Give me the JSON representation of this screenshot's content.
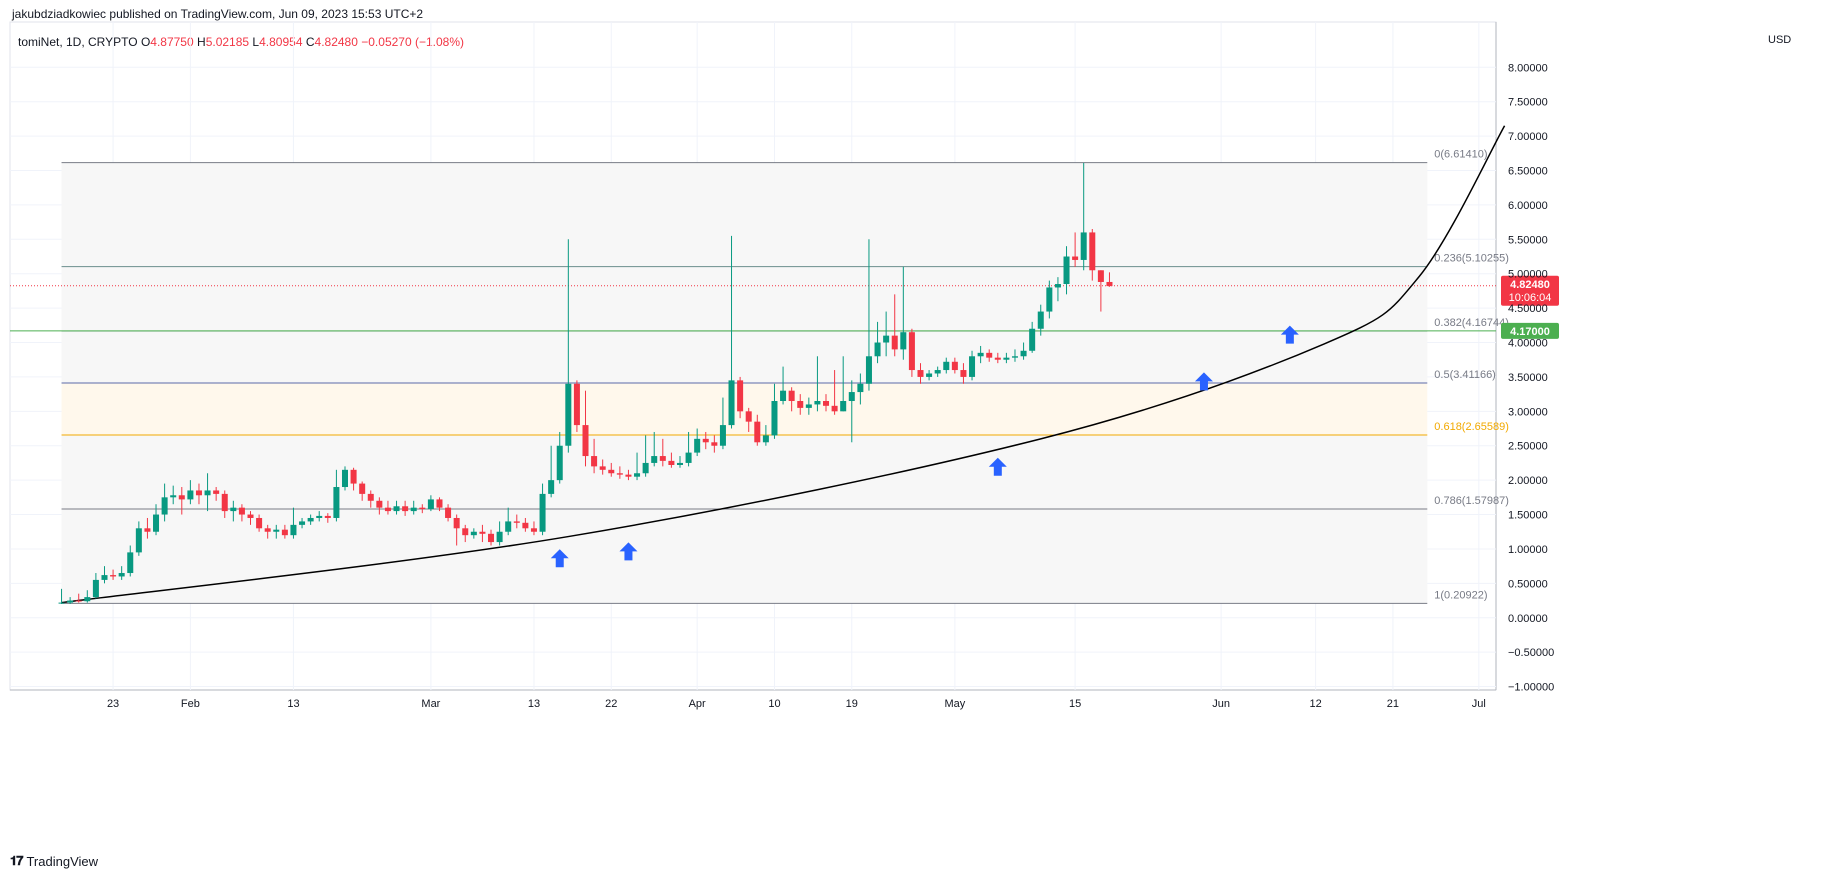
{
  "publisher_line": "jakubdziadkowiec published on TradingView.com, Jun 09, 2023 15:53 UTC+2",
  "legend": {
    "symbol": "tomiNet, 1D, CRYPTO",
    "o_label": "O",
    "o_value": "4.87750",
    "h_label": "H",
    "h_value": "5.02185",
    "l_label": "L",
    "l_value": "4.80954",
    "c_label": "C",
    "c_value": "4.82480",
    "change": "−0.05270 (−1.08%)"
  },
  "currency": "USD",
  "footer": {
    "logo_text": "TradingView"
  },
  "colors": {
    "up": "#089981",
    "down": "#f23645",
    "grid": "#f0f3fa",
    "fib_fill": "#f7f7f7",
    "fib_golden_fill": "#fff8ec",
    "fib_golden_line": "#f2a900",
    "fib_line": "#787b86",
    "support_line": "#4caf50",
    "arrow": "#2962ff",
    "curve": "#000000"
  },
  "chart_data": {
    "type": "candlestick",
    "ylim": [
      -1.05,
      8.6
    ],
    "y_ticks": [
      "8.00000",
      "7.50000",
      "7.00000",
      "6.50000",
      "6.00000",
      "5.50000",
      "5.00000",
      "4.50000",
      "4.00000",
      "3.50000",
      "3.00000",
      "2.50000",
      "2.00000",
      "1.50000",
      "1.00000",
      "0.50000",
      "0.00000",
      "−0.50000",
      "−1.00000"
    ],
    "y_tick_values": [
      8.0,
      7.5,
      7.0,
      6.5,
      6.0,
      5.5,
      5.0,
      4.5,
      4.0,
      3.5,
      3.0,
      2.5,
      2.0,
      1.5,
      1.0,
      0.5,
      0.0,
      -0.5,
      -1.0
    ],
    "x_ticks": [
      {
        "label": "23",
        "day": 6
      },
      {
        "label": "Feb",
        "day": 15
      },
      {
        "label": "13",
        "day": 27
      },
      {
        "label": "Mar",
        "day": 43
      },
      {
        "label": "13",
        "day": 55
      },
      {
        "label": "22",
        "day": 64
      },
      {
        "label": "Apr",
        "day": 74
      },
      {
        "label": "10",
        "day": 83
      },
      {
        "label": "19",
        "day": 92
      },
      {
        "label": "May",
        "day": 104
      },
      {
        "label": "15",
        "day": 118
      },
      {
        "label": "Jun",
        "day": 135
      },
      {
        "label": "12",
        "day": 146
      },
      {
        "label": "21",
        "day": 155
      },
      {
        "label": "Jul",
        "day": 165
      }
    ],
    "x_range_days": [
      -6,
      167
    ],
    "candles": [
      [
        0.22,
        0.22,
        0.42,
        0.2
      ],
      [
        0.22,
        0.25,
        0.3,
        0.2
      ],
      [
        0.25,
        0.24,
        0.35,
        0.22
      ],
      [
        0.24,
        0.3,
        0.4,
        0.22
      ],
      [
        0.3,
        0.55,
        0.65,
        0.28
      ],
      [
        0.55,
        0.62,
        0.75,
        0.5
      ],
      [
        0.62,
        0.6,
        0.7,
        0.55
      ],
      [
        0.6,
        0.65,
        0.75,
        0.55
      ],
      [
        0.65,
        0.95,
        1.05,
        0.6
      ],
      [
        0.95,
        1.3,
        1.4,
        0.9
      ],
      [
        1.3,
        1.25,
        1.45,
        1.15
      ],
      [
        1.25,
        1.5,
        1.65,
        1.2
      ],
      [
        1.5,
        1.75,
        1.95,
        1.4
      ],
      [
        1.75,
        1.78,
        1.92,
        1.65
      ],
      [
        1.78,
        1.72,
        1.9,
        1.5
      ],
      [
        1.72,
        1.85,
        2.0,
        1.65
      ],
      [
        1.85,
        1.78,
        1.95,
        1.65
      ],
      [
        1.78,
        1.85,
        2.1,
        1.55
      ],
      [
        1.85,
        1.8,
        1.9,
        1.7
      ],
      [
        1.8,
        1.55,
        1.85,
        1.45
      ],
      [
        1.55,
        1.6,
        1.7,
        1.4
      ],
      [
        1.6,
        1.5,
        1.65,
        1.4
      ],
      [
        1.5,
        1.45,
        1.55,
        1.35
      ],
      [
        1.45,
        1.3,
        1.5,
        1.25
      ],
      [
        1.3,
        1.25,
        1.35,
        1.15
      ],
      [
        1.25,
        1.28,
        1.35,
        1.15
      ],
      [
        1.28,
        1.2,
        1.35,
        1.15
      ],
      [
        1.2,
        1.35,
        1.6,
        1.15
      ],
      [
        1.35,
        1.4,
        1.45,
        1.3
      ],
      [
        1.4,
        1.45,
        1.5,
        1.35
      ],
      [
        1.45,
        1.48,
        1.55,
        1.4
      ],
      [
        1.48,
        1.45,
        1.52,
        1.38
      ],
      [
        1.45,
        1.9,
        2.15,
        1.4
      ],
      [
        1.9,
        2.15,
        2.2,
        1.85
      ],
      [
        2.15,
        1.95,
        2.18,
        1.85
      ],
      [
        1.95,
        1.8,
        1.98,
        1.7
      ],
      [
        1.8,
        1.7,
        1.85,
        1.6
      ],
      [
        1.7,
        1.6,
        1.75,
        1.5
      ],
      [
        1.6,
        1.55,
        1.7,
        1.5
      ],
      [
        1.55,
        1.62,
        1.7,
        1.5
      ],
      [
        1.62,
        1.55,
        1.7,
        1.48
      ],
      [
        1.55,
        1.6,
        1.7,
        1.5
      ],
      [
        1.6,
        1.58,
        1.65,
        1.52
      ],
      [
        1.58,
        1.72,
        1.78,
        1.55
      ],
      [
        1.72,
        1.6,
        1.75,
        1.55
      ],
      [
        1.6,
        1.45,
        1.65,
        1.4
      ],
      [
        1.45,
        1.3,
        1.5,
        1.05
      ],
      [
        1.3,
        1.2,
        1.35,
        1.1
      ],
      [
        1.2,
        1.25,
        1.3,
        1.15
      ],
      [
        1.25,
        1.22,
        1.35,
        1.1
      ],
      [
        1.22,
        1.1,
        1.28,
        1.05
      ],
      [
        1.1,
        1.25,
        1.4,
        1.05
      ],
      [
        1.25,
        1.4,
        1.6,
        1.2
      ],
      [
        1.4,
        1.38,
        1.5,
        1.3
      ],
      [
        1.38,
        1.3,
        1.45,
        1.25
      ],
      [
        1.3,
        1.25,
        1.4,
        1.2
      ],
      [
        1.25,
        1.8,
        1.95,
        1.2
      ],
      [
        1.8,
        2.0,
        2.5,
        1.75
      ],
      [
        2.0,
        2.5,
        2.7,
        1.95
      ],
      [
        2.5,
        3.4,
        5.5,
        2.4
      ],
      [
        3.4,
        2.8,
        3.45,
        2.7
      ],
      [
        2.8,
        2.35,
        3.3,
        2.2
      ],
      [
        2.35,
        2.2,
        2.6,
        2.1
      ],
      [
        2.2,
        2.15,
        2.3,
        2.08
      ],
      [
        2.15,
        2.1,
        2.25,
        2.05
      ],
      [
        2.1,
        2.08,
        2.2,
        2.02
      ],
      [
        2.08,
        2.05,
        2.15,
        2.0
      ],
      [
        2.05,
        2.1,
        2.4,
        2.0
      ],
      [
        2.1,
        2.25,
        2.65,
        2.05
      ],
      [
        2.25,
        2.35,
        2.7,
        2.2
      ],
      [
        2.35,
        2.28,
        2.6,
        2.2
      ],
      [
        2.28,
        2.22,
        2.4,
        2.18
      ],
      [
        2.22,
        2.25,
        2.35,
        2.18
      ],
      [
        2.25,
        2.4,
        2.7,
        2.2
      ],
      [
        2.4,
        2.6,
        2.75,
        2.35
      ],
      [
        2.6,
        2.55,
        2.7,
        2.45
      ],
      [
        2.55,
        2.5,
        2.65,
        2.4
      ],
      [
        2.5,
        2.8,
        3.2,
        2.45
      ],
      [
        2.8,
        3.45,
        5.55,
        2.75
      ],
      [
        3.45,
        3.0,
        3.5,
        2.9
      ],
      [
        3.0,
        2.85,
        3.05,
        2.7
      ],
      [
        2.85,
        2.55,
        2.95,
        2.5
      ],
      [
        2.55,
        2.65,
        2.8,
        2.5
      ],
      [
        2.65,
        3.15,
        3.4,
        2.6
      ],
      [
        3.15,
        3.3,
        3.65,
        3.1
      ],
      [
        3.3,
        3.15,
        3.35,
        3.0
      ],
      [
        3.15,
        3.05,
        3.25,
        2.95
      ],
      [
        3.05,
        3.1,
        3.2,
        2.95
      ],
      [
        3.1,
        3.15,
        3.8,
        3.0
      ],
      [
        3.15,
        3.08,
        3.25,
        3.0
      ],
      [
        3.08,
        3.0,
        3.6,
        2.95
      ],
      [
        3.0,
        3.15,
        3.8,
        3.0
      ],
      [
        3.15,
        3.28,
        3.45,
        2.55
      ],
      [
        3.28,
        3.4,
        3.55,
        3.1
      ],
      [
        3.4,
        3.8,
        5.5,
        3.3
      ],
      [
        3.8,
        4.0,
        4.3,
        3.7
      ],
      [
        4.0,
        4.1,
        4.45,
        3.8
      ],
      [
        4.1,
        3.9,
        4.7,
        3.8
      ],
      [
        3.9,
        4.15,
        5.1,
        3.75
      ],
      [
        4.15,
        3.6,
        4.2,
        3.5
      ],
      [
        3.6,
        3.5,
        3.7,
        3.4
      ],
      [
        3.5,
        3.55,
        3.6,
        3.45
      ],
      [
        3.55,
        3.6,
        3.65,
        3.5
      ],
      [
        3.6,
        3.72,
        3.78,
        3.55
      ],
      [
        3.72,
        3.6,
        3.78,
        3.55
      ],
      [
        3.6,
        3.5,
        3.7,
        3.4
      ],
      [
        3.5,
        3.8,
        3.88,
        3.45
      ],
      [
        3.8,
        3.85,
        3.95,
        3.7
      ],
      [
        3.85,
        3.78,
        3.9,
        3.72
      ],
      [
        3.78,
        3.75,
        3.85,
        3.7
      ],
      [
        3.75,
        3.78,
        3.85,
        3.7
      ],
      [
        3.78,
        3.8,
        3.9,
        3.72
      ],
      [
        3.8,
        3.88,
        4.0,
        3.75
      ],
      [
        3.88,
        4.2,
        4.3,
        3.85
      ],
      [
        4.2,
        4.45,
        4.55,
        4.1
      ],
      [
        4.45,
        4.8,
        4.9,
        4.35
      ],
      [
        4.8,
        4.85,
        4.95,
        4.6
      ],
      [
        4.85,
        5.25,
        5.4,
        4.7
      ],
      [
        5.25,
        5.2,
        5.6,
        5.1
      ],
      [
        5.2,
        5.6,
        6.61,
        5.05
      ],
      [
        5.6,
        5.05,
        5.65,
        4.9
      ],
      [
        5.05,
        4.88,
        5.05,
        4.45
      ],
      [
        4.88,
        4.82,
        5.02,
        4.81
      ]
    ],
    "fib_levels": [
      {
        "ratio": "0",
        "value": 6.6141,
        "label": "0(6.61410)"
      },
      {
        "ratio": "0.236",
        "value": 5.10255,
        "label": "0.236(5.10255)"
      },
      {
        "ratio": "0.382",
        "value": 4.16744,
        "label": "0.382(4.16744)"
      },
      {
        "ratio": "0.5",
        "value": 3.41166,
        "label": "0.5(3.41166)"
      },
      {
        "ratio": "0.618",
        "value": 2.65589,
        "label": "0.618(2.65589)"
      },
      {
        "ratio": "0.786",
        "value": 1.57987,
        "label": "0.786(1.57987)"
      },
      {
        "ratio": "1",
        "value": 0.20922,
        "label": "1(0.20922)"
      }
    ],
    "fib_day_range": [
      0,
      159
    ],
    "support_line": {
      "value": 4.17,
      "label": "4.17000"
    },
    "current_price": {
      "value": 4.8248,
      "label": "4.82480",
      "countdown": "10:06:04"
    },
    "curve": {
      "start_day": 0,
      "start_value": 0.22,
      "end_day": 168,
      "end_value": 7.15,
      "mid_points": [
        [
          59,
          1.18
        ],
        [
          114,
          2.6
        ],
        [
          147,
          3.98
        ],
        [
          158,
          4.95
        ]
      ]
    },
    "arrows": [
      {
        "day": 58,
        "value": 0.85
      },
      {
        "day": 66,
        "value": 0.95
      },
      {
        "day": 109,
        "value": 2.18
      },
      {
        "day": 133,
        "value": 3.42
      },
      {
        "day": 143,
        "value": 4.1
      }
    ]
  }
}
